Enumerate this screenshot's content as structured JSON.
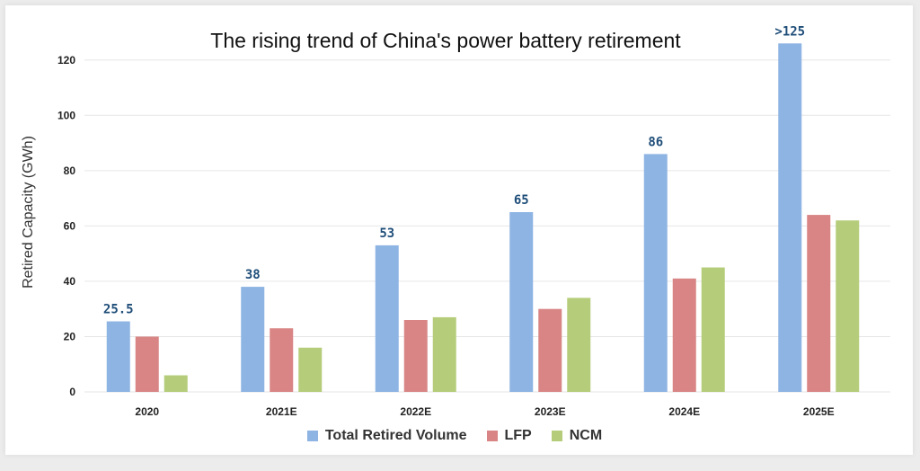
{
  "chart_data": {
    "type": "bar",
    "title": "The rising trend of China's power battery retirement",
    "ylabel": "Retired Capacity (GWh)",
    "xlabel": "",
    "ylim": [
      0,
      130
    ],
    "yticks": [
      0,
      20,
      40,
      60,
      80,
      100,
      120
    ],
    "grid": true,
    "legend_position": "bottom",
    "categories": [
      "2020",
      "2021E",
      "2022E",
      "2023E",
      "2024E",
      "2025E"
    ],
    "series": [
      {
        "name": "Total Retired Volume",
        "color": "#8eb4e3",
        "values": [
          25.5,
          38,
          53,
          65,
          86,
          126
        ],
        "labels": [
          "25.5",
          "38",
          "53",
          "65",
          "86",
          ">125"
        ]
      },
      {
        "name": "LFP",
        "color": "#d98585",
        "values": [
          20,
          23,
          26,
          30,
          41,
          64
        ]
      },
      {
        "name": "NCM",
        "color": "#b5cd7b",
        "values": [
          6,
          16,
          27,
          34,
          45,
          62
        ]
      }
    ],
    "label_color": "#1f4e79"
  }
}
